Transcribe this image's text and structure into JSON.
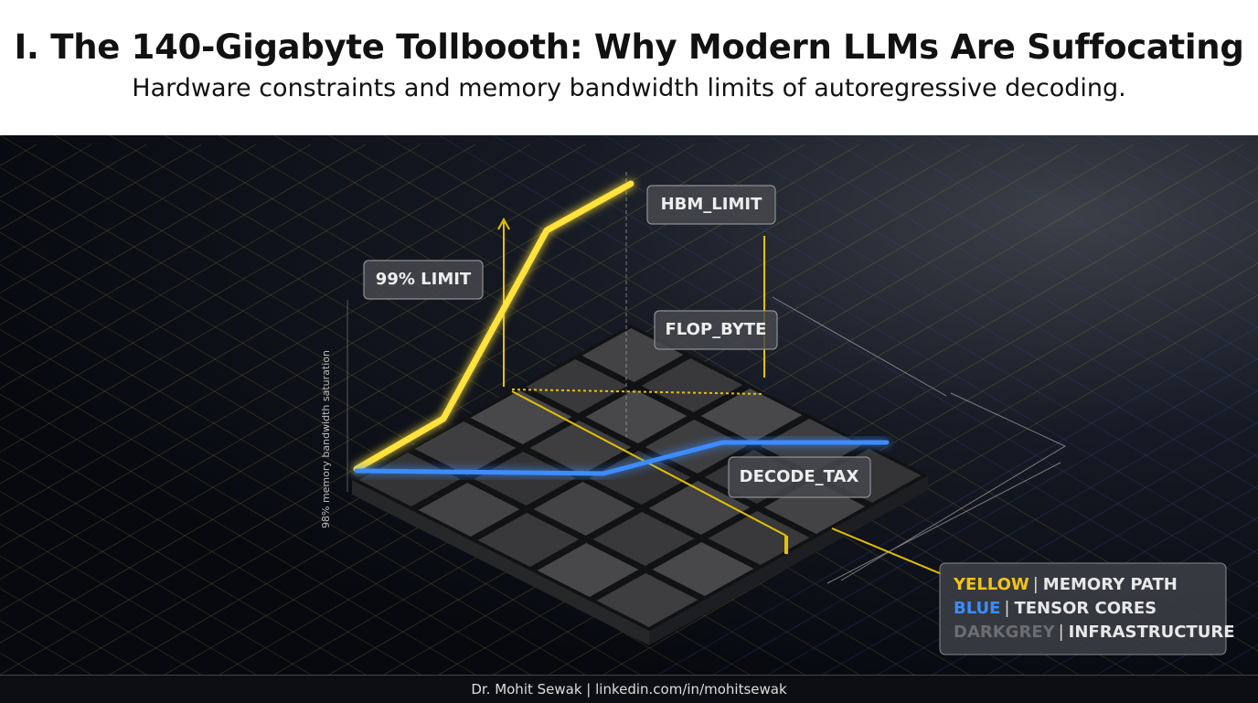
{
  "header": {
    "title": "I. The 140-Gigabyte Tollbooth: Why Modern LLMs Are Suffocating",
    "subtitle": "Hardware constraints and memory bandwidth limits of autoregressive decoding."
  },
  "illustration": {
    "axis_label": "98% memory bandwidth saturation",
    "labels": [
      "HBM_LIMIT",
      "99% LIMIT",
      "FLOP_BYTE",
      "DECODE_TAX"
    ]
  },
  "legend": [
    {
      "key": "YELLOW",
      "label": "MEMORY PATH"
    },
    {
      "key": "BLUE",
      "label": "TENSOR CORES"
    },
    {
      "key": "DARKGREY",
      "label": "INFRASTRUCTURE"
    }
  ],
  "footer": "Dr. Mohit Sewak | linkedin.com/in/mohitsewak"
}
